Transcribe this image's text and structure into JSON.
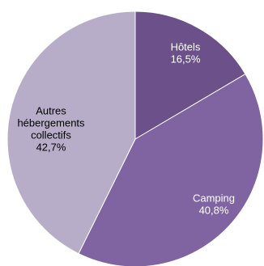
{
  "chart_data": {
    "type": "pie",
    "title": "",
    "slices": [
      {
        "label_lines": [
          "Hôtels"
        ],
        "value": 16.5,
        "value_text": "16,5%",
        "color": "#6b5089",
        "text_color": "#ffffff"
      },
      {
        "label_lines": [
          "Camping"
        ],
        "value": 40.8,
        "value_text": "40,8%",
        "color": "#8064a2",
        "text_color": "#ffffff"
      },
      {
        "label_lines": [
          "Autres",
          "hébergements",
          "collectifs"
        ],
        "value": 42.7,
        "value_text": "42,7%",
        "color": "#b7adc9",
        "text_color": "#000000"
      }
    ],
    "start_angle_deg": 0,
    "direction": "clockwise",
    "legend": "none"
  }
}
